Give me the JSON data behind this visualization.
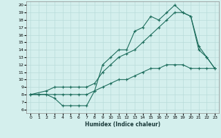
{
  "xlabel": "Humidex (Indice chaleur)",
  "bg_color": "#d4efed",
  "grid_color": "#b8dbd9",
  "line_color": "#1a6b5a",
  "xlim": [
    -0.5,
    23.5
  ],
  "ylim": [
    5.5,
    20.5
  ],
  "xticks": [
    0,
    1,
    2,
    3,
    4,
    5,
    6,
    7,
    8,
    9,
    10,
    11,
    12,
    13,
    14,
    15,
    16,
    17,
    18,
    19,
    20,
    21,
    22,
    23
  ],
  "yticks": [
    6,
    7,
    8,
    9,
    10,
    11,
    12,
    13,
    14,
    15,
    16,
    17,
    18,
    19,
    20
  ],
  "line1_x": [
    0,
    1,
    2,
    3,
    4,
    5,
    6,
    7,
    8,
    9,
    10,
    11,
    12,
    13,
    14,
    15,
    16,
    17,
    18,
    19,
    20,
    21,
    22,
    23
  ],
  "line1_y": [
    8,
    8,
    8,
    7.5,
    6.5,
    6.5,
    6.5,
    6.5,
    8.5,
    12,
    13,
    14,
    14,
    16.5,
    17,
    18.5,
    18,
    19,
    20,
    19,
    18.5,
    14,
    13,
    11.5
  ],
  "line2_x": [
    0,
    2,
    3,
    4,
    5,
    6,
    7,
    8,
    9,
    10,
    11,
    12,
    13,
    14,
    15,
    16,
    17,
    18,
    19,
    20,
    21,
    22,
    23
  ],
  "line2_y": [
    8,
    8.5,
    9,
    9,
    9,
    9,
    9,
    9.5,
    11,
    12,
    13,
    13.5,
    14,
    15,
    16,
    17,
    18,
    19,
    19,
    18.5,
    14.5,
    13,
    11.5
  ],
  "line3_x": [
    0,
    1,
    2,
    3,
    4,
    5,
    6,
    7,
    8,
    9,
    10,
    11,
    12,
    13,
    14,
    15,
    16,
    17,
    18,
    19,
    20,
    21,
    22,
    23
  ],
  "line3_y": [
    8,
    8,
    8,
    8,
    8,
    8,
    8,
    8,
    8.5,
    9,
    9.5,
    10,
    10,
    10.5,
    11,
    11.5,
    11.5,
    12,
    12,
    12,
    11.5,
    11.5,
    11.5,
    11.5
  ]
}
